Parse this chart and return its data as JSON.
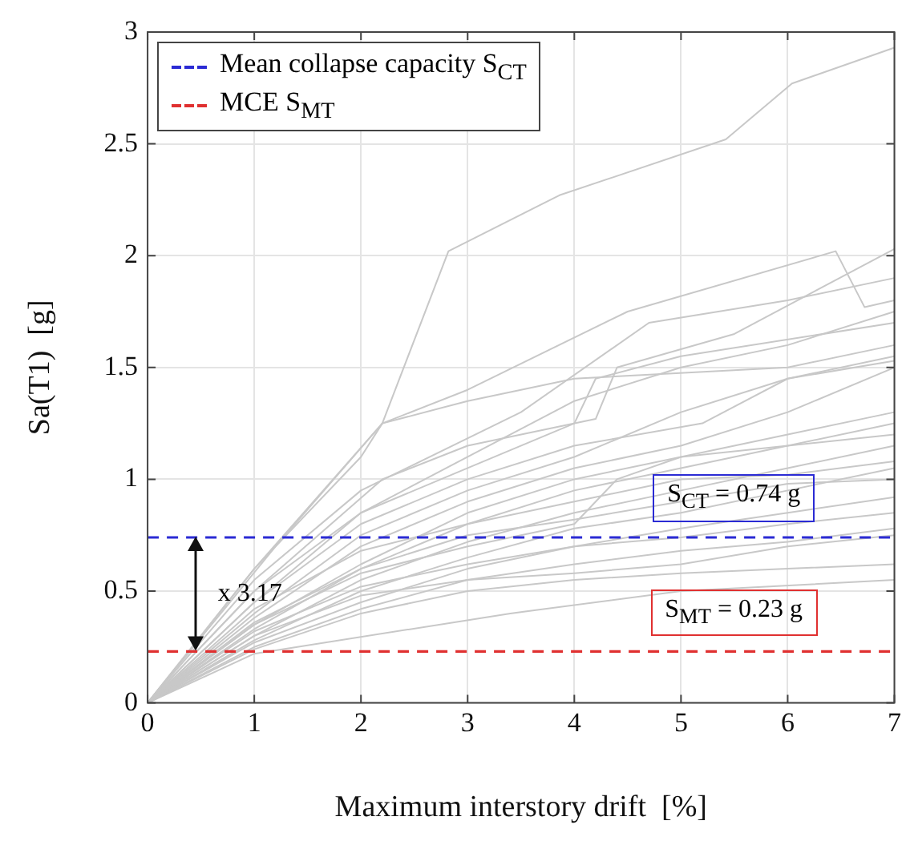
{
  "chart_data": {
    "type": "line",
    "xlabel": "Maximum interstory drift  [%]",
    "ylabel": "Sa(T1)  [g]",
    "xlim": [
      0,
      7
    ],
    "ylim": [
      0,
      3
    ],
    "xticks": [
      0,
      1,
      2,
      3,
      4,
      5,
      6,
      7
    ],
    "yticks": [
      0,
      0.5,
      1,
      1.5,
      2,
      2.5,
      3
    ],
    "grid": true,
    "legend": "top left",
    "marker": "none",
    "line_style": "solid",
    "series": [
      {
        "color": "#c8c8c8",
        "x": [
          0,
          1,
          2.2,
          2.82,
          3.86,
          5.42,
          6.04,
          7
        ],
        "values": [
          0,
          0.6,
          1.25,
          2.02,
          2.27,
          2.52,
          2.77,
          2.93
        ]
      },
      {
        "color": "#c8c8c8",
        "x": [
          0,
          1.2,
          2.2,
          3,
          4.5,
          6.45,
          6.72,
          7
        ],
        "values": [
          0,
          0.7,
          1.25,
          1.4,
          1.75,
          2.02,
          1.77,
          1.8
        ]
      },
      {
        "color": "#c8c8c8",
        "x": [
          0,
          1,
          2.2,
          3,
          4.2,
          4.4,
          5.5,
          7
        ],
        "values": [
          0,
          0.5,
          1.0,
          1.15,
          1.27,
          1.5,
          1.65,
          2.03
        ]
      },
      {
        "color": "#c8c8c8",
        "x": [
          0,
          1,
          2,
          3,
          4,
          5,
          6,
          7
        ],
        "values": [
          0,
          0.45,
          0.85,
          1.1,
          1.35,
          1.5,
          1.6,
          1.75
        ]
      },
      {
        "color": "#c8c8c8",
        "x": [
          0,
          1,
          2,
          3,
          4,
          5,
          6,
          7
        ],
        "values": [
          0,
          0.4,
          0.75,
          0.95,
          1.1,
          1.3,
          1.45,
          1.55
        ]
      },
      {
        "color": "#c8c8c8",
        "x": [
          0,
          1,
          2,
          3,
          4,
          5,
          6,
          7
        ],
        "values": [
          0,
          0.38,
          0.7,
          0.9,
          1.05,
          1.15,
          1.3,
          1.5
        ]
      },
      {
        "color": "#c8c8c8",
        "x": [
          0,
          1,
          2,
          3,
          4,
          5,
          6,
          7
        ],
        "values": [
          0,
          0.35,
          0.62,
          0.85,
          1.0,
          1.1,
          1.2,
          1.3
        ]
      },
      {
        "color": "#c8c8c8",
        "x": [
          0,
          1,
          2,
          3,
          4,
          5,
          6,
          7
        ],
        "values": [
          0,
          0.33,
          0.6,
          0.8,
          0.95,
          1.05,
          1.15,
          1.25
        ]
      },
      {
        "color": "#c8c8c8",
        "x": [
          0,
          1,
          2,
          3,
          4,
          5,
          6,
          7
        ],
        "values": [
          0,
          0.3,
          0.55,
          0.72,
          0.85,
          0.95,
          1.05,
          1.15
        ]
      },
      {
        "color": "#c8c8c8",
        "x": [
          0,
          1,
          2,
          3,
          4,
          5,
          6,
          7
        ],
        "values": [
          0,
          0.28,
          0.5,
          0.65,
          0.78,
          0.85,
          0.95,
          1.05
        ]
      },
      {
        "color": "#c8c8c8",
        "x": [
          0,
          1,
          2,
          3,
          4,
          5,
          6,
          7
        ],
        "values": [
          0,
          0.27,
          0.45,
          0.6,
          0.7,
          0.78,
          0.85,
          0.92
        ]
      },
      {
        "color": "#c8c8c8",
        "x": [
          0,
          1,
          2,
          3,
          4,
          5,
          6,
          7
        ],
        "values": [
          0,
          0.25,
          0.42,
          0.55,
          0.62,
          0.68,
          0.72,
          0.78
        ]
      },
      {
        "color": "#c8c8c8",
        "x": [
          0,
          1,
          2,
          3,
          4,
          5,
          6,
          7
        ],
        "values": [
          0,
          0.24,
          0.4,
          0.5,
          0.55,
          0.58,
          0.6,
          0.62
        ]
      },
      {
        "color": "#c8c8c8",
        "x": [
          0,
          1,
          3.4,
          5,
          7
        ],
        "values": [
          0,
          0.22,
          0.4,
          0.5,
          0.55
        ]
      },
      {
        "color": "#c8c8c8",
        "x": [
          0,
          1,
          2,
          3.5,
          4.7,
          6,
          7
        ],
        "values": [
          0,
          0.55,
          0.95,
          1.3,
          1.7,
          1.8,
          1.9
        ]
      },
      {
        "color": "#c8c8c8",
        "x": [
          0,
          1,
          2,
          3,
          4,
          4.2,
          5,
          7
        ],
        "values": [
          0,
          0.5,
          0.85,
          1.05,
          1.25,
          1.45,
          1.55,
          1.7
        ]
      },
      {
        "color": "#c8c8c8",
        "x": [
          0,
          1,
          2,
          3,
          4,
          5.2,
          6,
          7
        ],
        "values": [
          0,
          0.45,
          0.8,
          1.0,
          1.15,
          1.25,
          1.45,
          1.53
        ]
      },
      {
        "color": "#c8c8c8",
        "x": [
          0,
          1,
          2,
          3,
          4,
          5,
          6,
          7
        ],
        "values": [
          0,
          0.42,
          0.68,
          0.8,
          0.9,
          1.0,
          1.02,
          1.08
        ]
      },
      {
        "color": "#c8c8c8",
        "x": [
          0,
          1,
          2,
          3,
          4,
          5,
          6,
          7
        ],
        "values": [
          0,
          0.36,
          0.6,
          0.75,
          0.82,
          0.9,
          0.98,
          1.0
        ]
      },
      {
        "color": "#c8c8c8",
        "x": [
          0,
          1,
          2,
          3,
          4,
          5,
          6,
          7
        ],
        "values": [
          0,
          0.32,
          0.52,
          0.62,
          0.7,
          0.74,
          0.8,
          0.85
        ]
      },
      {
        "color": "#c8c8c8",
        "x": [
          0,
          1,
          2,
          3,
          4,
          5,
          6,
          7
        ],
        "values": [
          0,
          0.3,
          0.48,
          0.55,
          0.58,
          0.62,
          0.7,
          0.75
        ]
      },
      {
        "color": "#c8c8c8",
        "x": [
          0,
          1,
          2,
          2.2,
          3,
          4,
          6,
          7
        ],
        "values": [
          0,
          0.6,
          1.1,
          1.25,
          1.35,
          1.45,
          1.5,
          1.6
        ]
      },
      {
        "color": "#c8c8c8",
        "x": [
          0,
          1,
          2,
          3,
          4,
          4.4,
          5,
          7
        ],
        "values": [
          0,
          0.35,
          0.58,
          0.7,
          0.8,
          1.0,
          1.1,
          1.2
        ]
      }
    ],
    "ref_lines": [
      {
        "axis": "y",
        "value": 0.74,
        "label": "Mean collapse capacity S$_{CT}$",
        "color": "#2b2bd4",
        "line_style": "dashed"
      },
      {
        "axis": "y",
        "value": 0.23,
        "label": "MCE S$_{MT}$",
        "color": "#e03030",
        "line_style": "dashed"
      }
    ],
    "annotations": [
      "S$_{CT}$ = 0.74 g",
      "S$_{MT}$ = 0.23 g",
      "x 3.17"
    ]
  }
}
